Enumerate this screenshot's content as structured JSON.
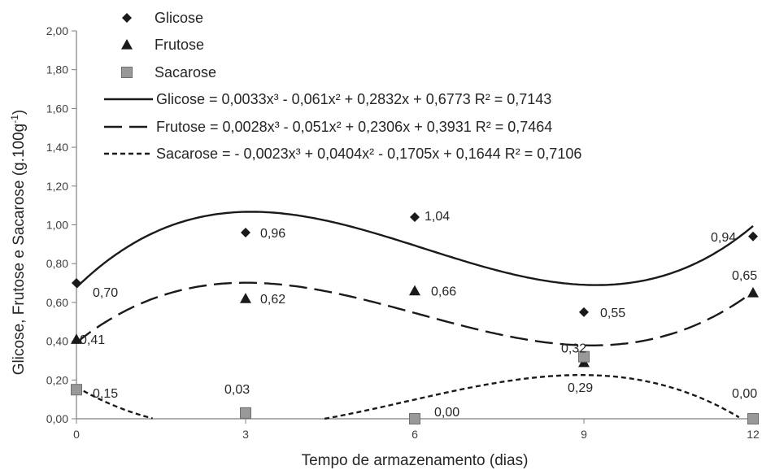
{
  "chart_data": {
    "type": "scatter",
    "xlabel": "Tempo de armazenamento (dias)",
    "ylabel_main": "Glicose, Frutose e Sacarose  (g.100g",
    "ylabel_sup": "-1",
    "ylabel_close": ")",
    "xlim": [
      0,
      12
    ],
    "ylim": [
      0,
      2
    ],
    "x_ticks": [
      "0",
      "3",
      "6",
      "9",
      "12"
    ],
    "y_ticks": [
      "0,00",
      "0,20",
      "0,40",
      "0,60",
      "0,80",
      "1,00",
      "1,20",
      "1,40",
      "1,60",
      "1,80",
      "2,00"
    ],
    "x": [
      0,
      3,
      6,
      9,
      12
    ],
    "legend_position": "top-left",
    "grid": false,
    "series": [
      {
        "name": "Glicose",
        "marker": "diamond",
        "color": "#1a1a1a",
        "values": [
          0.7,
          0.96,
          1.04,
          0.55,
          0.94
        ],
        "labels": [
          "0,70",
          "0,96",
          "1,04",
          "0,55",
          "0,94"
        ],
        "trend": {
          "coeffs": [
            0.0033,
            -0.061,
            0.2832,
            0.6773
          ],
          "style": "solid",
          "label": "Glicose =  0,0033x³ - 0,061x² + 0,2832x + 0,6773 R² = 0,7143"
        }
      },
      {
        "name": "Frutose",
        "marker": "triangle",
        "color": "#1a1a1a",
        "values": [
          0.41,
          0.62,
          0.66,
          0.29,
          0.65
        ],
        "labels": [
          "0,41",
          "0,62",
          "0,66",
          "0,29",
          "0,65"
        ],
        "trend": {
          "coeffs": [
            0.0028,
            -0.051,
            0.2306,
            0.3931
          ],
          "style": "long-dash",
          "label": "Frutose =  0,0028x³ - 0,051x² + 0,2306x + 0,3931 R² = 0,7464"
        }
      },
      {
        "name": "Sacarose",
        "marker": "square",
        "color": "#999999",
        "values": [
          0.15,
          0.03,
          0.0,
          0.32,
          0.0
        ],
        "labels": [
          "0,15",
          "0,03",
          "0,00",
          "0,32",
          "0,00"
        ],
        "trend": {
          "coeffs": [
            -0.0023,
            0.0404,
            -0.1705,
            0.1644
          ],
          "style": "short-dash",
          "label": "Sacarose =  - 0,0023x³ + 0,0404x² - 0,1705x + 0,1644 R² = 0,7106"
        }
      }
    ]
  }
}
